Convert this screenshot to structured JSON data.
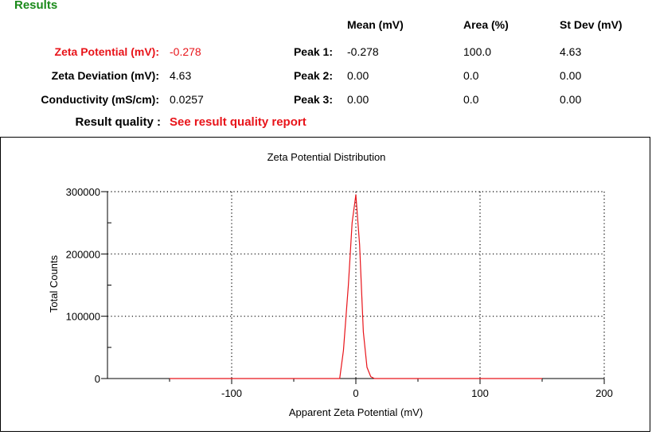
{
  "results": {
    "title": "Results",
    "headers": {
      "mean": "Mean (mV)",
      "area": "Area (%)",
      "stdev": "St Dev (mV)"
    },
    "zeta_potential": {
      "label": "Zeta Potential (mV):",
      "value": "-0.278"
    },
    "zeta_deviation": {
      "label": "Zeta Deviation (mV):",
      "value": "4.63"
    },
    "conductivity": {
      "label": "Conductivity (mS/cm):",
      "value": "0.0257"
    },
    "result_quality": {
      "label": "Result quality :",
      "value": "See result quality report"
    },
    "peaks": [
      {
        "label": "Peak 1:",
        "mean": "-0.278",
        "area": "100.0",
        "stdev": "4.63"
      },
      {
        "label": "Peak 2:",
        "mean": "0.00",
        "area": "0.0",
        "stdev": "0.00"
      },
      {
        "label": "Peak 3:",
        "mean": "0.00",
        "area": "0.0",
        "stdev": "0.00"
      }
    ],
    "colors": {
      "title": "#1a8a1a",
      "highlight": "#e8141a"
    }
  },
  "chart_data": {
    "type": "line",
    "title": "Zeta Potential Distribution",
    "xlabel": "Apparent Zeta Potential (mV)",
    "ylabel": "Total Counts",
    "xlim": [
      -200,
      200
    ],
    "ylim": [
      0,
      300000
    ],
    "xticks": [
      -100,
      0,
      100,
      200
    ],
    "xtick_labels": [
      "-100",
      "0",
      "100",
      "200"
    ],
    "yticks": [
      0,
      100000,
      200000,
      300000
    ],
    "ytick_labels": [
      "0",
      "100000",
      "200000",
      "300000"
    ],
    "grid": true,
    "series": [
      {
        "color": "#e8141a",
        "x": [
          -150,
          -100,
          -50,
          -13,
          -10,
          -6,
          -3,
          0,
          3,
          6,
          9,
          12,
          15,
          50,
          100,
          150
        ],
        "y": [
          0,
          0,
          0,
          0,
          45000,
          150000,
          250000,
          295000,
          215000,
          75000,
          18000,
          3000,
          0,
          0,
          0,
          0
        ]
      }
    ]
  }
}
